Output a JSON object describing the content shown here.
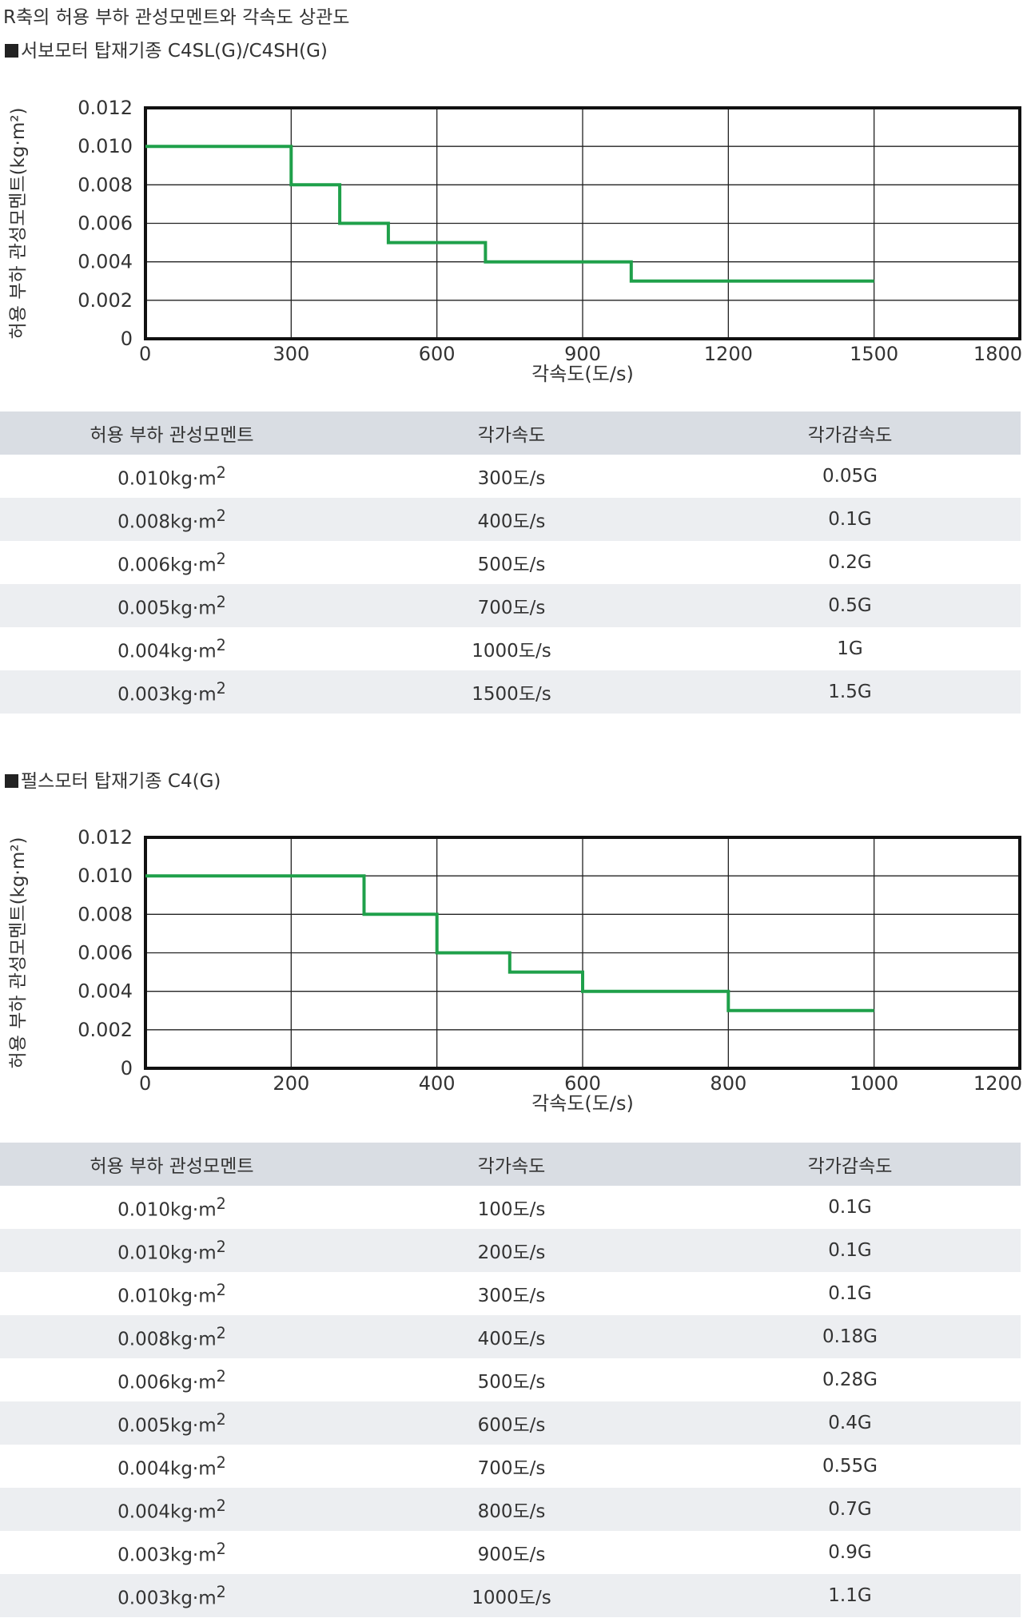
{
  "page_title": "R축의 허용 부하 관성모멘트와 각속도 상관도",
  "colors": {
    "line": "#1fa04a",
    "grid": "#222222",
    "header_bg": "#d9dde3",
    "stripe_bg": "#eceef1"
  },
  "sections": [
    {
      "title": "서보모터 탑재기종 C4SL(G)/C4SH(G)",
      "table": {
        "headers": [
          "허용 부하 관성모멘트",
          "각가속도",
          "각가감속도"
        ],
        "unit": "kg·m",
        "sup": "2",
        "rows": [
          [
            "0.010",
            "300도/s",
            "0.05G"
          ],
          [
            "0.008",
            "400도/s",
            "0.1G"
          ],
          [
            "0.006",
            "500도/s",
            "0.2G"
          ],
          [
            "0.005",
            "700도/s",
            "0.5G"
          ],
          [
            "0.004",
            "1000도/s",
            "1G"
          ],
          [
            "0.003",
            "1500도/s",
            "1.5G"
          ]
        ]
      }
    },
    {
      "title": "펄스모터 탑재기종 C4(G)",
      "table": {
        "headers": [
          "허용 부하 관성모멘트",
          "각가속도",
          "각가감속도"
        ],
        "unit": "kg·m",
        "sup": "2",
        "rows": [
          [
            "0.010",
            "100도/s",
            "0.1G"
          ],
          [
            "0.010",
            "200도/s",
            "0.1G"
          ],
          [
            "0.010",
            "300도/s",
            "0.1G"
          ],
          [
            "0.008",
            "400도/s",
            "0.18G"
          ],
          [
            "0.006",
            "500도/s",
            "0.28G"
          ],
          [
            "0.005",
            "600도/s",
            "0.4G"
          ],
          [
            "0.004",
            "700도/s",
            "0.55G"
          ],
          [
            "0.004",
            "800도/s",
            "0.7G"
          ],
          [
            "0.003",
            "900도/s",
            "0.9G"
          ],
          [
            "0.003",
            "1000도/s",
            "1.1G"
          ]
        ]
      }
    }
  ],
  "chart_data": [
    {
      "type": "line",
      "step": true,
      "xlabel": "각속도(도/s)",
      "ylabel": "허용 부하 관성모멘트(kg·m²)",
      "xlim": [
        0,
        1800
      ],
      "ylim": [
        0,
        0.012
      ],
      "xticks": [
        "0",
        "300",
        "600",
        "900",
        "1200",
        "1500",
        "1800"
      ],
      "yticks": [
        "0",
        "0.002",
        "0.004",
        "0.006",
        "0.008",
        "0.010",
        "0.012"
      ],
      "grid": true,
      "series": [
        {
          "x": [
            0,
            300,
            300,
            400,
            400,
            500,
            500,
            700,
            700,
            1000,
            1000,
            1500
          ],
          "y": [
            0.01,
            0.01,
            0.008,
            0.008,
            0.006,
            0.006,
            0.005,
            0.005,
            0.004,
            0.004,
            0.003,
            0.003
          ]
        }
      ]
    },
    {
      "type": "line",
      "step": true,
      "xlabel": "각속도(도/s)",
      "ylabel": "허용 부하 관성모멘트(kg·m²)",
      "xlim": [
        0,
        1200
      ],
      "ylim": [
        0,
        0.012
      ],
      "xticks": [
        "0",
        "200",
        "400",
        "600",
        "800",
        "1000",
        "1200"
      ],
      "yticks": [
        "0",
        "0.002",
        "0.004",
        "0.006",
        "0.008",
        "0.010",
        "0.012"
      ],
      "grid": true,
      "series": [
        {
          "x": [
            0,
            300,
            300,
            400,
            400,
            500,
            500,
            600,
            600,
            800,
            800,
            1000
          ],
          "y": [
            0.01,
            0.01,
            0.008,
            0.008,
            0.006,
            0.006,
            0.005,
            0.005,
            0.004,
            0.004,
            0.003,
            0.003
          ]
        }
      ]
    }
  ]
}
